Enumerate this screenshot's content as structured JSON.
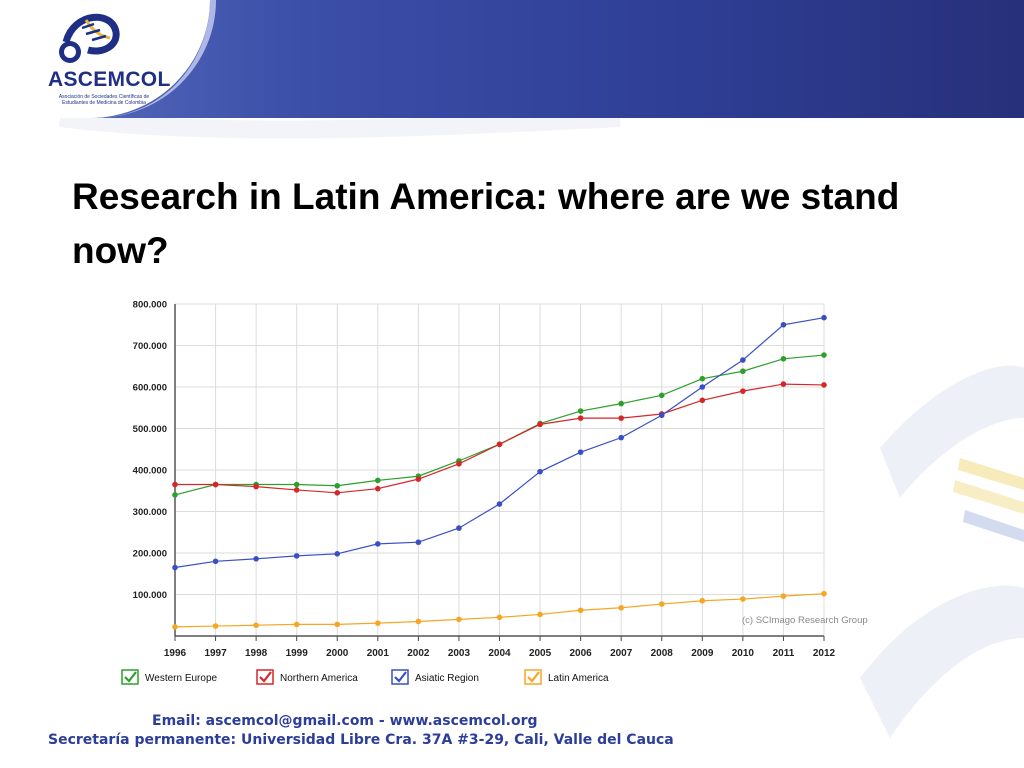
{
  "header": {
    "logo_name": "ASCEMCOL",
    "logo_subtitle": "Asociación de Sociedades Científicas de Estudiantes de Medicina de Colombia",
    "brand_color": "#2f3f96"
  },
  "slide": {
    "title": "Research in Latin America: where are we stand now?"
  },
  "footer": {
    "email_line": "Email: ascemcol@gmail.com  - www.ascemcol.org",
    "address_line": "Secretaría permanente: Universidad Libre Cra. 37A #3-29, Cali, Valle del Cauca"
  },
  "chart_data": {
    "type": "line",
    "title": "",
    "xlabel": "",
    "ylabel": "",
    "x": [
      "1996",
      "1997",
      "1998",
      "1999",
      "2000",
      "2001",
      "2002",
      "2003",
      "2004",
      "2005",
      "2006",
      "2007",
      "2008",
      "2009",
      "2010",
      "2011",
      "2012"
    ],
    "ylim": [
      0,
      800000
    ],
    "yticks": [
      "100.000",
      "200.000",
      "300.000",
      "400.000",
      "500.000",
      "600.000",
      "700.000",
      "800.000"
    ],
    "grid": true,
    "legend_position": "bottom",
    "watermark": "(c) SCImago Research Group",
    "series": [
      {
        "name": "Western Europe",
        "color": "#2ca02c",
        "values": [
          340000,
          365000,
          365000,
          365000,
          362000,
          375000,
          385000,
          422000,
          462000,
          512000,
          542000,
          560000,
          580000,
          620000,
          638000,
          668000,
          677000
        ]
      },
      {
        "name": "Northern America",
        "color": "#d62728",
        "values": [
          365000,
          365000,
          360000,
          352000,
          345000,
          355000,
          378000,
          415000,
          462000,
          510000,
          525000,
          525000,
          535000,
          568000,
          590000,
          607000,
          605000
        ]
      },
      {
        "name": "Asiatic Region",
        "color": "#3a4fc4",
        "values": [
          165000,
          180000,
          186000,
          193000,
          198000,
          222000,
          226000,
          260000,
          318000,
          396000,
          443000,
          478000,
          532000,
          600000,
          665000,
          750000,
          767000
        ]
      },
      {
        "name": "Latin America",
        "color": "#f5a623",
        "values": [
          22000,
          24000,
          26000,
          28000,
          28000,
          31000,
          35000,
          40000,
          45000,
          52000,
          62000,
          68000,
          77000,
          85000,
          89000,
          96000,
          102000
        ]
      }
    ]
  }
}
